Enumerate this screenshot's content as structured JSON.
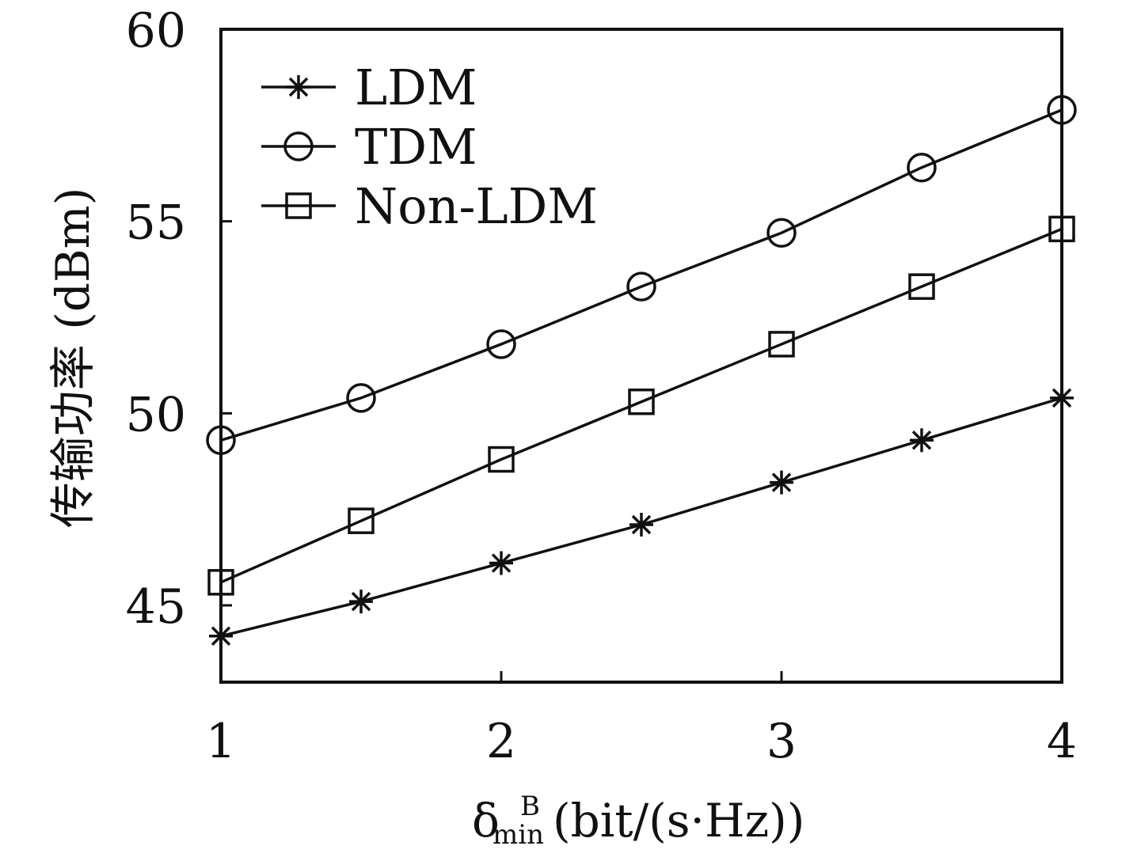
{
  "chart_data": {
    "type": "line",
    "x": [
      1,
      1.5,
      2,
      2.5,
      3,
      3.5,
      4
    ],
    "xlim": [
      1,
      4
    ],
    "ylim": [
      43,
      60
    ],
    "xticks": [
      "1",
      "2",
      "3",
      "4"
    ],
    "yticks": [
      "45",
      "50",
      "55",
      "60"
    ],
    "ylabel": "传输功率 (dBm)",
    "xlabel": {
      "symbol": "δ",
      "subscript": "min",
      "superscript": "B",
      "unit": "(bit/(s·Hz))"
    },
    "legend_position": "top-left",
    "grid": false,
    "series": [
      {
        "name": "LDM",
        "marker": "asterisk",
        "values": [
          44.2,
          45.1,
          46.1,
          47.1,
          48.2,
          49.3,
          50.4
        ]
      },
      {
        "name": "TDM",
        "marker": "circle",
        "values": [
          49.3,
          50.4,
          51.8,
          53.3,
          54.7,
          56.4,
          57.9
        ]
      },
      {
        "name": "Non-LDM",
        "marker": "square",
        "values": [
          45.6,
          47.2,
          48.8,
          50.3,
          51.8,
          53.3,
          54.8
        ]
      }
    ],
    "colors": {
      "line": "#111111",
      "background": "#ffffff"
    }
  }
}
